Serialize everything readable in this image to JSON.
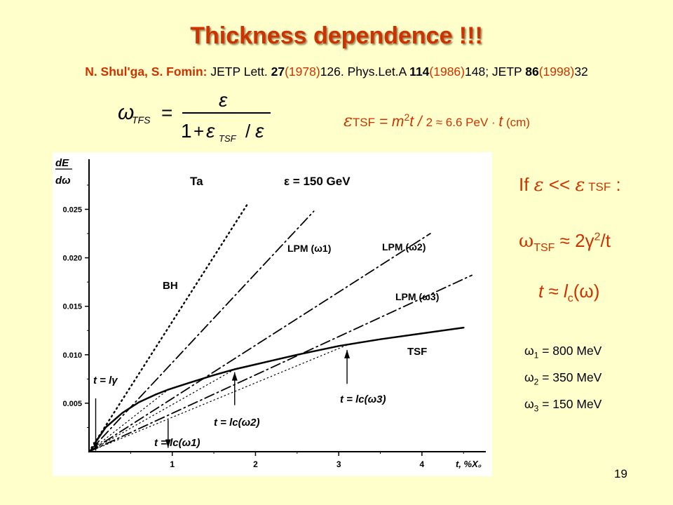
{
  "slide": {
    "title": "Thickness dependence !!!",
    "authors": "N. Shul'ga, S. Fomin:",
    "ref_journal1": "JETP Lett.",
    "ref_vol1": "27",
    "ref_year1": "(1978)",
    "ref_page1": "126. Phys.Let.A",
    "ref_vol2": "114",
    "ref_year2": "(1986)",
    "ref_page2": "148; JETP",
    "ref_vol3": "86",
    "ref_year3": "(1998)",
    "ref_page3": "32",
    "formula": {
      "lhs": "ω",
      "lhs_sub": "TFS",
      "equals": "=",
      "numerator": "ε",
      "denominator_one": "1",
      "denominator_plus": "+",
      "denominator_eps": "ε",
      "denominator_sub": "TSF",
      "denominator_slash": "/",
      "denominator_eps2": "ε"
    },
    "tsf_eq": {
      "eps": "ε",
      "sub": "TSF",
      "eq": " = m",
      "sup": "2",
      "mid": "t / ",
      "two_approx": "2 ≈ 6.6 PeV · ",
      "t": "t",
      "unit": " (cm)"
    },
    "condition": {
      "if": "If ",
      "eps1": "ε",
      "ll": " << ",
      "eps2": "ε",
      "sub": " TSF",
      "colon": " :"
    },
    "omega_tsf": {
      "omega": "ω",
      "sub": "TSF",
      "approx": " ≈ 2",
      "gamma": "γ",
      "sup": "2",
      "tail": "/t"
    },
    "t_lc": {
      "t": "t",
      "approx": " ≈ ",
      "l": "l",
      "sub": "c",
      "open": "(",
      "omega": "ω",
      "close": ")"
    },
    "omegas": [
      {
        "symbol": "ω",
        "sub": "1",
        "value": " = 800 MeV"
      },
      {
        "symbol": "ω",
        "sub": "2",
        "value": " = 350 MeV"
      },
      {
        "symbol": "ω",
        "sub": "3",
        "value": " = 150 MeV"
      }
    ],
    "page_number": "19"
  },
  "chart_data": {
    "type": "line",
    "title": "",
    "ylabel": "dE / dω",
    "xlabel": "t, %X₀",
    "xlim": [
      0,
      4.7
    ],
    "ylim": [
      0,
      0.028
    ],
    "x_ticks": [
      1,
      2,
      3,
      4
    ],
    "y_ticks": [
      0.005,
      0.01,
      0.015,
      0.02,
      0.025
    ],
    "y_tick_labels": [
      "0.005",
      "0.010",
      "0.015",
      "0.020",
      "0.025"
    ],
    "x_tick_labels": [
      "1",
      "2",
      "3",
      "4"
    ],
    "annotations": {
      "material": "Ta",
      "energy": "ε = 150 GeV",
      "bh": "BH",
      "lpm1": "LPM (ω1)",
      "lpm2": "LPM (ω2)",
      "lpm3": "LPM (ω3)",
      "tsf": "TSF",
      "t_lgamma": "t = lγ",
      "t_lc1": "t = lc(ω1)",
      "t_lc2": "t = lc(ω2)",
      "t_lc3": "t = lc(ω3)"
    },
    "series": [
      {
        "name": "BH",
        "style": "dotted",
        "x": [
          0,
          1.9
        ],
        "y": [
          0,
          0.0255
        ]
      },
      {
        "name": "LPM (ω1)",
        "style": "dashdot",
        "x": [
          0,
          2.7
        ],
        "y": [
          0,
          0.0248
        ]
      },
      {
        "name": "LPM (ω2)",
        "style": "dashdot",
        "x": [
          0,
          4.1
        ],
        "y": [
          0,
          0.0225
        ]
      },
      {
        "name": "LPM (ω3)",
        "style": "dashdot",
        "x": [
          0,
          4.6
        ],
        "y": [
          0,
          0.0182
        ]
      },
      {
        "name": "TSF",
        "style": "solid",
        "x": [
          0.08,
          0.2,
          0.4,
          0.6,
          0.8,
          0.95,
          1.2,
          1.5,
          1.75,
          2.0,
          2.5,
          3.0,
          3.5,
          4.0,
          4.5
        ],
        "y": [
          0.001,
          0.0025,
          0.004,
          0.0051,
          0.0059,
          0.0064,
          0.0071,
          0.0079,
          0.0085,
          0.009,
          0.01,
          0.0109,
          0.0116,
          0.0122,
          0.0128
        ]
      }
    ],
    "tangent_lines": [
      {
        "style": "dotted",
        "x": [
          0,
          0.95
        ],
        "y": [
          0,
          0.0064
        ]
      },
      {
        "style": "dotted",
        "x": [
          0,
          1.75
        ],
        "y": [
          0,
          0.0085
        ]
      },
      {
        "style": "dotted",
        "x": [
          0,
          3.1
        ],
        "y": [
          0,
          0.011
        ]
      }
    ],
    "arrows_x": [
      0.08,
      0.95,
      1.75,
      3.1
    ],
    "markers_x": [
      0.95,
      1.75,
      3.1
    ]
  }
}
